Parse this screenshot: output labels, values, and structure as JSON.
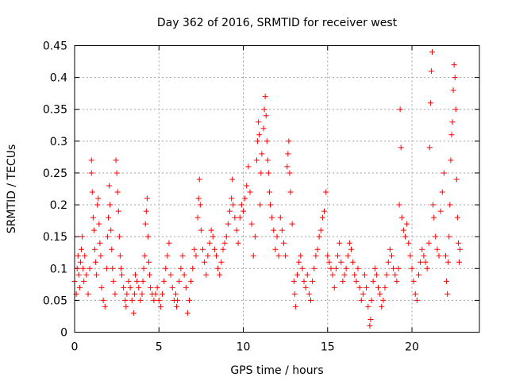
{
  "chart_data": {
    "type": "scatter",
    "title": "Day 362 of 2016, SRMTID for receiver west",
    "xlabel": "GPS time / hours",
    "ylabel": "SRMTID / TECUs",
    "xlim": [
      0,
      24
    ],
    "ylim": [
      0,
      0.45
    ],
    "grid": true,
    "x_ticks": [
      0,
      5,
      10,
      15,
      20
    ],
    "x_tick_labels": [
      "0",
      "5",
      "10",
      "15",
      "20"
    ],
    "y_ticks": [
      0,
      0.05,
      0.1,
      0.15,
      0.2,
      0.25,
      0.3,
      0.35,
      0.4,
      0.45
    ],
    "y_tick_labels": [
      "0",
      "0.05",
      "0.1",
      "0.15",
      "0.2",
      "0.25",
      "0.3",
      "0.35",
      "0.4",
      "0.45"
    ],
    "marker": "+",
    "color": "#ff0000",
    "points": [
      [
        0.0,
        0.08
      ],
      [
        0.1,
        0.06
      ],
      [
        0.15,
        0.1
      ],
      [
        0.2,
        0.12
      ],
      [
        0.25,
        0.09
      ],
      [
        0.3,
        0.07
      ],
      [
        0.35,
        0.11
      ],
      [
        0.4,
        0.13
      ],
      [
        0.45,
        0.15
      ],
      [
        0.5,
        0.1
      ],
      [
        0.55,
        0.08
      ],
      [
        0.6,
        0.12
      ],
      [
        0.7,
        0.09
      ],
      [
        0.8,
        0.06
      ],
      [
        0.9,
        0.1
      ],
      [
        1.0,
        0.27
      ],
      [
        1.0,
        0.25
      ],
      [
        1.05,
        0.22
      ],
      [
        1.1,
        0.18
      ],
      [
        1.15,
        0.16
      ],
      [
        1.2,
        0.13
      ],
      [
        1.25,
        0.11
      ],
      [
        1.3,
        0.09
      ],
      [
        1.35,
        0.2
      ],
      [
        1.4,
        0.21
      ],
      [
        1.45,
        0.17
      ],
      [
        1.5,
        0.14
      ],
      [
        1.55,
        0.12
      ],
      [
        1.6,
        0.07
      ],
      [
        1.7,
        0.05
      ],
      [
        1.8,
        0.04
      ],
      [
        1.9,
        0.1
      ],
      [
        1.95,
        0.15
      ],
      [
        2.0,
        0.18
      ],
      [
        2.05,
        0.23
      ],
      [
        2.1,
        0.2
      ],
      [
        2.15,
        0.16
      ],
      [
        2.2,
        0.13
      ],
      [
        2.25,
        0.1
      ],
      [
        2.3,
        0.08
      ],
      [
        2.4,
        0.06
      ],
      [
        2.45,
        0.27
      ],
      [
        2.5,
        0.25
      ],
      [
        2.55,
        0.22
      ],
      [
        2.6,
        0.19
      ],
      [
        2.65,
        0.15
      ],
      [
        2.7,
        0.12
      ],
      [
        2.75,
        0.1
      ],
      [
        2.8,
        0.09
      ],
      [
        2.9,
        0.07
      ],
      [
        3.0,
        0.05
      ],
      [
        3.05,
        0.04
      ],
      [
        3.1,
        0.06
      ],
      [
        3.2,
        0.08
      ],
      [
        3.3,
        0.07
      ],
      [
        3.4,
        0.05
      ],
      [
        3.5,
        0.03
      ],
      [
        3.55,
        0.06
      ],
      [
        3.6,
        0.09
      ],
      [
        3.7,
        0.08
      ],
      [
        3.8,
        0.07
      ],
      [
        3.9,
        0.05
      ],
      [
        4.0,
        0.06
      ],
      [
        4.05,
        0.08
      ],
      [
        4.1,
        0.1
      ],
      [
        4.15,
        0.12
      ],
      [
        4.2,
        0.17
      ],
      [
        4.25,
        0.19
      ],
      [
        4.3,
        0.21
      ],
      [
        4.35,
        0.15
      ],
      [
        4.4,
        0.11
      ],
      [
        4.45,
        0.09
      ],
      [
        4.5,
        0.07
      ],
      [
        4.6,
        0.06
      ],
      [
        4.7,
        0.05
      ],
      [
        4.8,
        0.06
      ],
      [
        4.9,
        0.07
      ],
      [
        5.0,
        0.05
      ],
      [
        5.1,
        0.04
      ],
      [
        5.2,
        0.06
      ],
      [
        5.3,
        0.08
      ],
      [
        5.4,
        0.1
      ],
      [
        5.5,
        0.12
      ],
      [
        5.6,
        0.14
      ],
      [
        5.7,
        0.09
      ],
      [
        5.8,
        0.07
      ],
      [
        5.9,
        0.05
      ],
      [
        6.0,
        0.06
      ],
      [
        6.05,
        0.04
      ],
      [
        6.1,
        0.05
      ],
      [
        6.2,
        0.08
      ],
      [
        6.3,
        0.1
      ],
      [
        6.4,
        0.12
      ],
      [
        6.5,
        0.09
      ],
      [
        6.6,
        0.07
      ],
      [
        6.7,
        0.03
      ],
      [
        6.8,
        0.05
      ],
      [
        6.9,
        0.08
      ],
      [
        7.0,
        0.1
      ],
      [
        7.1,
        0.13
      ],
      [
        7.2,
        0.12
      ],
      [
        7.3,
        0.18
      ],
      [
        7.35,
        0.21
      ],
      [
        7.4,
        0.24
      ],
      [
        7.45,
        0.2
      ],
      [
        7.5,
        0.16
      ],
      [
        7.6,
        0.13
      ],
      [
        7.7,
        0.11
      ],
      [
        7.8,
        0.09
      ],
      [
        7.9,
        0.12
      ],
      [
        8.0,
        0.14
      ],
      [
        8.1,
        0.16
      ],
      [
        8.2,
        0.15
      ],
      [
        8.3,
        0.13
      ],
      [
        8.4,
        0.12
      ],
      [
        8.5,
        0.1
      ],
      [
        8.6,
        0.09
      ],
      [
        8.7,
        0.11
      ],
      [
        8.8,
        0.13
      ],
      [
        8.9,
        0.14
      ],
      [
        9.0,
        0.15
      ],
      [
        9.1,
        0.17
      ],
      [
        9.2,
        0.19
      ],
      [
        9.3,
        0.21
      ],
      [
        9.35,
        0.24
      ],
      [
        9.4,
        0.2
      ],
      [
        9.5,
        0.18
      ],
      [
        9.6,
        0.16
      ],
      [
        9.7,
        0.14
      ],
      [
        9.8,
        0.18
      ],
      [
        9.9,
        0.2
      ],
      [
        10.0,
        0.19
      ],
      [
        10.1,
        0.21
      ],
      [
        10.2,
        0.23
      ],
      [
        10.3,
        0.26
      ],
      [
        10.4,
        0.22
      ],
      [
        10.5,
        0.17
      ],
      [
        10.6,
        0.12
      ],
      [
        10.7,
        0.15
      ],
      [
        10.8,
        0.27
      ],
      [
        10.85,
        0.3
      ],
      [
        10.9,
        0.33
      ],
      [
        10.95,
        0.31
      ],
      [
        11.0,
        0.2
      ],
      [
        11.05,
        0.25
      ],
      [
        11.1,
        0.28
      ],
      [
        11.2,
        0.32
      ],
      [
        11.25,
        0.35
      ],
      [
        11.3,
        0.37
      ],
      [
        11.35,
        0.34
      ],
      [
        11.4,
        0.3
      ],
      [
        11.45,
        0.27
      ],
      [
        11.5,
        0.25
      ],
      [
        11.55,
        0.22
      ],
      [
        11.6,
        0.2
      ],
      [
        11.7,
        0.18
      ],
      [
        11.8,
        0.16
      ],
      [
        11.9,
        0.13
      ],
      [
        12.0,
        0.15
      ],
      [
        12.1,
        0.12
      ],
      [
        12.2,
        0.18
      ],
      [
        12.3,
        0.16
      ],
      [
        12.4,
        0.14
      ],
      [
        12.5,
        0.12
      ],
      [
        12.6,
        0.26
      ],
      [
        12.65,
        0.28
      ],
      [
        12.7,
        0.3
      ],
      [
        12.75,
        0.25
      ],
      [
        12.8,
        0.22
      ],
      [
        12.9,
        0.17
      ],
      [
        13.0,
        0.08
      ],
      [
        13.05,
        0.06
      ],
      [
        13.1,
        0.04
      ],
      [
        13.2,
        0.09
      ],
      [
        13.3,
        0.11
      ],
      [
        13.4,
        0.12
      ],
      [
        13.5,
        0.1
      ],
      [
        13.6,
        0.08
      ],
      [
        13.7,
        0.07
      ],
      [
        13.8,
        0.09
      ],
      [
        13.9,
        0.06
      ],
      [
        14.0,
        0.05
      ],
      [
        14.1,
        0.08
      ],
      [
        14.2,
        0.1
      ],
      [
        14.3,
        0.12
      ],
      [
        14.4,
        0.13
      ],
      [
        14.5,
        0.15
      ],
      [
        14.6,
        0.16
      ],
      [
        14.7,
        0.18
      ],
      [
        14.8,
        0.19
      ],
      [
        14.9,
        0.22
      ],
      [
        15.0,
        0.12
      ],
      [
        15.1,
        0.11
      ],
      [
        15.2,
        0.1
      ],
      [
        15.3,
        0.09
      ],
      [
        15.4,
        0.07
      ],
      [
        15.5,
        0.1
      ],
      [
        15.6,
        0.12
      ],
      [
        15.7,
        0.14
      ],
      [
        15.8,
        0.11
      ],
      [
        15.9,
        0.08
      ],
      [
        16.0,
        0.09
      ],
      [
        16.1,
        0.1
      ],
      [
        16.2,
        0.12
      ],
      [
        16.3,
        0.14
      ],
      [
        16.4,
        0.13
      ],
      [
        16.5,
        0.11
      ],
      [
        16.6,
        0.09
      ],
      [
        16.7,
        0.08
      ],
      [
        16.8,
        0.1
      ],
      [
        16.9,
        0.07
      ],
      [
        17.0,
        0.05
      ],
      [
        17.1,
        0.06
      ],
      [
        17.2,
        0.09
      ],
      [
        17.3,
        0.07
      ],
      [
        17.4,
        0.04
      ],
      [
        17.5,
        0.01
      ],
      [
        17.55,
        0.02
      ],
      [
        17.6,
        0.05
      ],
      [
        17.7,
        0.08
      ],
      [
        17.8,
        0.1
      ],
      [
        17.9,
        0.09
      ],
      [
        18.0,
        0.07
      ],
      [
        18.1,
        0.06
      ],
      [
        18.2,
        0.04
      ],
      [
        18.3,
        0.05
      ],
      [
        18.4,
        0.07
      ],
      [
        18.5,
        0.09
      ],
      [
        18.6,
        0.11
      ],
      [
        18.7,
        0.13
      ],
      [
        18.8,
        0.12
      ],
      [
        18.9,
        0.1
      ],
      [
        19.0,
        0.09
      ],
      [
        19.1,
        0.08
      ],
      [
        19.2,
        0.1
      ],
      [
        19.25,
        0.2
      ],
      [
        19.3,
        0.35
      ],
      [
        19.35,
        0.29
      ],
      [
        19.4,
        0.18
      ],
      [
        19.5,
        0.16
      ],
      [
        19.6,
        0.15
      ],
      [
        19.7,
        0.17
      ],
      [
        19.8,
        0.14
      ],
      [
        19.9,
        0.12
      ],
      [
        20.0,
        0.1
      ],
      [
        20.1,
        0.08
      ],
      [
        20.2,
        0.06
      ],
      [
        20.3,
        0.05
      ],
      [
        20.4,
        0.09
      ],
      [
        20.5,
        0.11
      ],
      [
        20.6,
        0.13
      ],
      [
        20.7,
        0.12
      ],
      [
        20.8,
        0.11
      ],
      [
        20.9,
        0.1
      ],
      [
        21.0,
        0.14
      ],
      [
        21.05,
        0.29
      ],
      [
        21.1,
        0.36
      ],
      [
        21.15,
        0.41
      ],
      [
        21.2,
        0.44
      ],
      [
        21.25,
        0.2
      ],
      [
        21.3,
        0.18
      ],
      [
        21.4,
        0.15
      ],
      [
        21.5,
        0.13
      ],
      [
        21.6,
        0.12
      ],
      [
        21.7,
        0.19
      ],
      [
        21.8,
        0.22
      ],
      [
        21.9,
        0.25
      ],
      [
        22.0,
        0.12
      ],
      [
        22.05,
        0.08
      ],
      [
        22.1,
        0.06
      ],
      [
        22.15,
        0.11
      ],
      [
        22.2,
        0.15
      ],
      [
        22.25,
        0.2
      ],
      [
        22.3,
        0.27
      ],
      [
        22.35,
        0.31
      ],
      [
        22.4,
        0.33
      ],
      [
        22.45,
        0.38
      ],
      [
        22.5,
        0.42
      ],
      [
        22.55,
        0.4
      ],
      [
        22.6,
        0.35
      ],
      [
        22.65,
        0.24
      ],
      [
        22.7,
        0.18
      ],
      [
        22.75,
        0.14
      ],
      [
        22.8,
        0.11
      ],
      [
        22.85,
        0.13
      ]
    ]
  }
}
